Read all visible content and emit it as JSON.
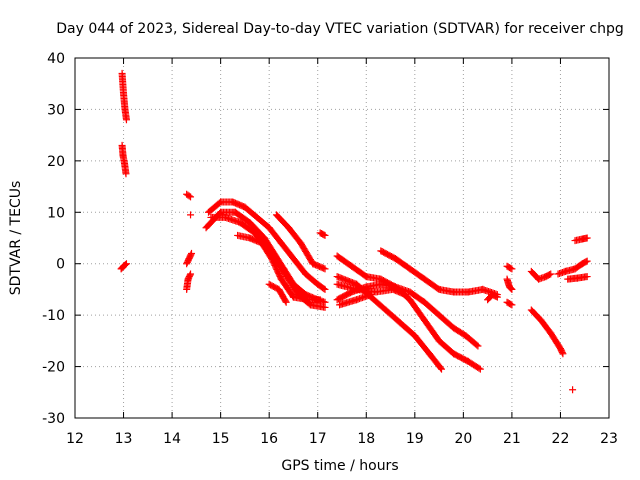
{
  "chart_data": {
    "type": "scatter",
    "title": "Day 044 of 2023, Sidereal Day-to-day VTEC variation (SDTVAR) for receiver chpg",
    "xlabel": "GPS time / hours",
    "ylabel": "SDTVAR / TECUs",
    "xlim": [
      12,
      23
    ],
    "ylim": [
      -30,
      40
    ],
    "xticks": [
      "12",
      "13",
      "14",
      "15",
      "16",
      "17",
      "18",
      "19",
      "20",
      "21",
      "22",
      "23"
    ],
    "yticks": [
      "40",
      "30",
      "20",
      "10",
      "0",
      "-10",
      "-20",
      "-30"
    ],
    "grid": true,
    "marker": "+",
    "color": "#ff0000",
    "series": [
      {
        "name": "s01",
        "segments": [
          [
            [
              12.97,
              37
            ],
            [
              13.0,
              33
            ],
            [
              13.03,
              30
            ],
            [
              13.06,
              28
            ]
          ]
        ]
      },
      {
        "name": "s02",
        "segments": [
          [
            [
              12.97,
              23
            ],
            [
              12.99,
              21
            ],
            [
              13.02,
              19.5
            ],
            [
              13.05,
              17.5
            ]
          ]
        ]
      },
      {
        "name": "s03",
        "segments": [
          [
            [
              12.95,
              -1
            ],
            [
              13.0,
              -0.5
            ],
            [
              13.06,
              0
            ]
          ]
        ]
      },
      {
        "name": "s04",
        "segments": [
          [
            [
              14.3,
              13.5
            ],
            [
              14.38,
              13
            ]
          ]
        ]
      },
      {
        "name": "s05",
        "segments": [
          [
            [
              14.38,
              9.5
            ]
          ]
        ]
      },
      {
        "name": "s06",
        "segments": [
          [
            [
              14.3,
              -5
            ],
            [
              14.33,
              -3
            ],
            [
              14.38,
              -2
            ]
          ]
        ]
      },
      {
        "name": "s07",
        "segments": [
          [
            [
              14.3,
              0
            ],
            [
              14.35,
              1
            ],
            [
              14.4,
              2
            ]
          ]
        ]
      },
      {
        "name": "s08",
        "segments": [
          [
            [
              14.75,
              10
            ],
            [
              15.0,
              12
            ],
            [
              15.25,
              12
            ],
            [
              15.5,
              11
            ],
            [
              15.75,
              9
            ],
            [
              16.0,
              7
            ],
            [
              16.25,
              4
            ],
            [
              16.5,
              1
            ],
            [
              16.75,
              -2
            ],
            [
              17.0,
              -4
            ],
            [
              17.15,
              -5
            ]
          ]
        ]
      },
      {
        "name": "s09",
        "segments": [
          [
            [
              14.7,
              7
            ],
            [
              15.0,
              10
            ],
            [
              15.3,
              10
            ],
            [
              15.6,
              8
            ],
            [
              15.9,
              5
            ],
            [
              16.1,
              2
            ],
            [
              16.3,
              -1
            ],
            [
              16.5,
              -4
            ],
            [
              16.75,
              -6
            ],
            [
              17.0,
              -7
            ],
            [
              17.15,
              -7.5
            ]
          ]
        ]
      },
      {
        "name": "s10",
        "segments": [
          [
            [
              14.8,
              9
            ],
            [
              15.1,
              9
            ],
            [
              15.4,
              8
            ],
            [
              15.7,
              6
            ],
            [
              15.95,
              3
            ],
            [
              16.2,
              0
            ],
            [
              16.4,
              -3
            ],
            [
              16.6,
              -6
            ],
            [
              16.85,
              -8
            ],
            [
              17.15,
              -8.5
            ]
          ]
        ]
      },
      {
        "name": "s11",
        "segments": [
          [
            [
              15.35,
              5.5
            ],
            [
              15.6,
              5
            ],
            [
              15.85,
              4
            ],
            [
              16.05,
              1
            ],
            [
              16.25,
              -3
            ],
            [
              16.5,
              -6.5
            ],
            [
              16.8,
              -7
            ],
            [
              17.05,
              -7
            ]
          ]
        ]
      },
      {
        "name": "s12",
        "segments": [
          [
            [
              16.0,
              -4
            ],
            [
              16.2,
              -5
            ],
            [
              16.35,
              -7.5
            ]
          ]
        ]
      },
      {
        "name": "s13",
        "segments": [
          [
            [
              16.15,
              9.5
            ],
            [
              16.4,
              7
            ],
            [
              16.65,
              4
            ],
            [
              16.9,
              0
            ],
            [
              17.15,
              -1
            ]
          ]
        ]
      },
      {
        "name": "s14",
        "segments": [
          [
            [
              17.05,
              6
            ],
            [
              17.15,
              5.5
            ]
          ]
        ]
      },
      {
        "name": "s15",
        "segments": [
          [
            [
              17.4,
              1.5
            ],
            [
              17.7,
              -0.5
            ],
            [
              18.0,
              -2.5
            ],
            [
              18.3,
              -3
            ],
            [
              18.6,
              -4.5
            ],
            [
              18.9,
              -7
            ],
            [
              19.2,
              -11
            ],
            [
              19.5,
              -15
            ],
            [
              19.8,
              -17.5
            ],
            [
              20.1,
              -19
            ],
            [
              20.35,
              -20.5
            ]
          ]
        ]
      },
      {
        "name": "s16",
        "segments": [
          [
            [
              17.4,
              -2.5
            ],
            [
              17.8,
              -4
            ],
            [
              18.1,
              -6.5
            ],
            [
              18.4,
              -9
            ],
            [
              18.7,
              -11.5
            ],
            [
              19.0,
              -14
            ],
            [
              19.3,
              -17.5
            ],
            [
              19.55,
              -20.5
            ]
          ]
        ]
      },
      {
        "name": "s17",
        "segments": [
          [
            [
              17.4,
              -7
            ],
            [
              17.7,
              -5.5
            ],
            [
              18.0,
              -4.5
            ],
            [
              18.3,
              -4
            ],
            [
              18.6,
              -4.5
            ],
            [
              18.9,
              -5.5
            ],
            [
              19.2,
              -7.5
            ],
            [
              19.5,
              -10
            ],
            [
              19.8,
              -12.5
            ],
            [
              20.05,
              -14
            ],
            [
              20.3,
              -16
            ]
          ]
        ]
      },
      {
        "name": "s18",
        "segments": [
          [
            [
              17.4,
              -4
            ],
            [
              17.8,
              -5
            ],
            [
              18.2,
              -5.5
            ],
            [
              18.55,
              -5
            ],
            [
              18.8,
              -6
            ]
          ]
        ]
      },
      {
        "name": "s19",
        "segments": [
          [
            [
              17.45,
              -8
            ],
            [
              17.8,
              -7
            ],
            [
              18.1,
              -6
            ]
          ]
        ]
      },
      {
        "name": "s20",
        "segments": [
          [
            [
              18.3,
              2.5
            ],
            [
              18.6,
              1
            ],
            [
              18.9,
              -1
            ],
            [
              19.2,
              -3
            ],
            [
              19.5,
              -5
            ],
            [
              19.8,
              -5.5
            ],
            [
              20.1,
              -5.5
            ],
            [
              20.4,
              -5
            ],
            [
              20.55,
              -5.5
            ],
            [
              20.7,
              -6
            ]
          ]
        ]
      },
      {
        "name": "s21",
        "segments": [
          [
            [
              20.5,
              -7
            ],
            [
              20.6,
              -6
            ],
            [
              20.7,
              -6.5
            ]
          ]
        ]
      },
      {
        "name": "s22",
        "segments": [
          [
            [
              20.9,
              -0.5
            ],
            [
              21.0,
              -1
            ]
          ]
        ]
      },
      {
        "name": "s23",
        "segments": [
          [
            [
              20.9,
              -3
            ],
            [
              20.95,
              -4.5
            ],
            [
              21.0,
              -5
            ]
          ]
        ]
      },
      {
        "name": "s24",
        "segments": [
          [
            [
              20.9,
              -7.5
            ],
            [
              21.0,
              -8
            ]
          ]
        ]
      },
      {
        "name": "s25",
        "segments": [
          [
            [
              21.4,
              -1.5
            ],
            [
              21.55,
              -3
            ],
            [
              21.7,
              -2.5
            ],
            [
              21.8,
              -2
            ]
          ]
        ]
      },
      {
        "name": "s26",
        "segments": [
          [
            [
              21.4,
              -9
            ],
            [
              21.6,
              -11
            ],
            [
              21.8,
              -13.5
            ],
            [
              22.0,
              -16.5
            ],
            [
              22.05,
              -17.5
            ]
          ]
        ]
      },
      {
        "name": "s27",
        "segments": [
          [
            [
              21.95,
              -2
            ],
            [
              22.1,
              -1.5
            ],
            [
              22.3,
              -1
            ],
            [
              22.45,
              0
            ],
            [
              22.55,
              0.5
            ]
          ]
        ]
      },
      {
        "name": "s28",
        "segments": [
          [
            [
              22.15,
              -3
            ],
            [
              22.35,
              -2.8
            ],
            [
              22.55,
              -2.5
            ]
          ]
        ]
      },
      {
        "name": "s29",
        "segments": [
          [
            [
              22.3,
              4.5
            ],
            [
              22.45,
              4.8
            ],
            [
              22.55,
              5
            ]
          ]
        ]
      },
      {
        "name": "s30",
        "segments": [
          [
            [
              22.25,
              -24.5
            ]
          ]
        ]
      }
    ]
  }
}
